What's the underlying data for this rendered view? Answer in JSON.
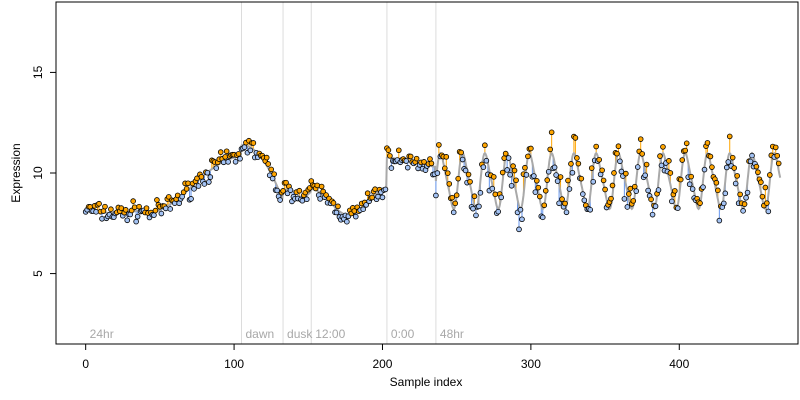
{
  "chart_data": {
    "type": "scatter",
    "title": "",
    "xlabel": "Sample index",
    "ylabel": "Expression",
    "xlim": [
      -20,
      480
    ],
    "ylim": [
      1.5,
      18.5
    ],
    "xticks": [
      0,
      100,
      200,
      300,
      400
    ],
    "yticks": [
      5,
      10,
      15
    ],
    "grid": false,
    "legend": "none",
    "segments": [
      {
        "label": "24hr",
        "x_start": 0,
        "x_end": 105
      },
      {
        "label": "dawn",
        "x_start": 105,
        "x_end": 133
      },
      {
        "label": "dusk",
        "x_start": 133,
        "x_end": 152
      },
      {
        "label": "12:00",
        "x_start": 152,
        "x_end": 203
      },
      {
        "label": "0:00",
        "x_start": 203,
        "x_end": 236
      },
      {
        "label": "48hr",
        "x_start": 236,
        "x_end": 468
      }
    ],
    "fit_color": "#a9a9a9",
    "above_color": "#ffa500",
    "below_color": "#6495ed",
    "point_fill_high": "#ffa500",
    "point_fill_low": "#a4c3f4",
    "fit_params": {
      "seg0_base": 8.2,
      "seg0_peak": 10.8,
      "seg0_trough": 8.0,
      "seg1_high": 11.4,
      "seg1_low": 8.6,
      "seg2_level": 9.0,
      "seg3_high": 9.2,
      "seg3_low": 7.9,
      "seg4_high": 10.8,
      "seg4_low": 10.3,
      "seg5_center": 9.6,
      "seg5_amp": 1.3,
      "seg5_period": 15
    },
    "n_points": 468
  }
}
